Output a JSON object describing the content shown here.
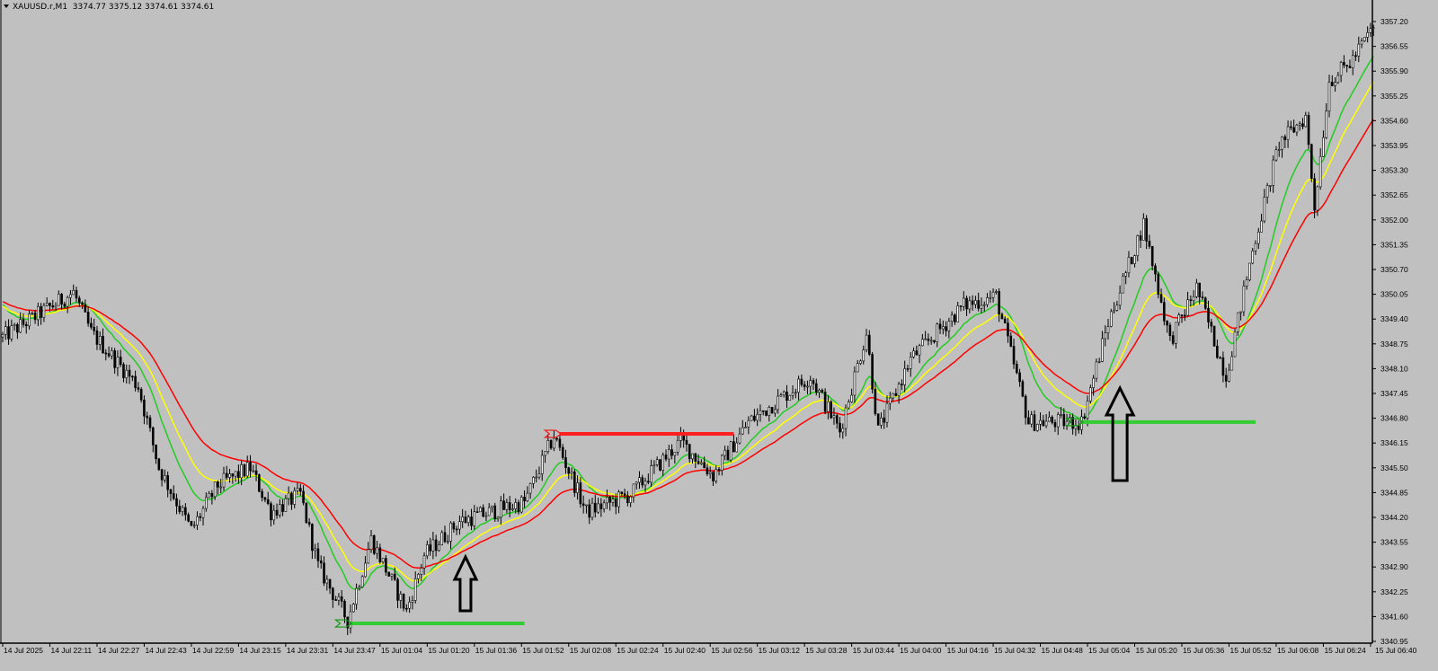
{
  "header": {
    "symbol": "XAUUSD.r,M1",
    "ohlc": "3374.77 3375.12 3374.61 3374.61"
  },
  "chart_data": {
    "type": "candlestick",
    "timeframe": "M1",
    "ylim": [
      3340.95,
      3357.2
    ],
    "y_ticks": [
      "3357.20",
      "3356.55",
      "3355.90",
      "3355.25",
      "3354.60",
      "3353.95",
      "3353.30",
      "3352.65",
      "3352.00",
      "3351.35",
      "3350.70",
      "3350.05",
      "3349.40",
      "3348.75",
      "3348.10",
      "3347.45",
      "3346.80",
      "3346.15",
      "3345.50",
      "3344.85",
      "3344.20",
      "3343.55",
      "3342.90",
      "3342.25",
      "3341.60",
      "3340.95"
    ],
    "x_ticks": [
      "14 Jul 2025",
      "14 Jul 22:11",
      "14 Jul 22:27",
      "14 Jul 22:43",
      "14 Jul 22:59",
      "14 Jul 23:15",
      "14 Jul 23:31",
      "14 Jul 23:47",
      "15 Jul 01:04",
      "15 Jul 01:20",
      "15 Jul 01:36",
      "15 Jul 01:52",
      "15 Jul 02:08",
      "15 Jul 02:24",
      "15 Jul 02:40",
      "15 Jul 02:56",
      "15 Jul 03:12",
      "15 Jul 03:28",
      "15 Jul 03:44",
      "15 Jul 04:00",
      "15 Jul 04:16",
      "15 Jul 04:32",
      "15 Jul 04:48",
      "15 Jul 05:04",
      "15 Jul 05:20",
      "15 Jul 05:36",
      "15 Jul 05:52",
      "15 Jul 06:08",
      "15 Jul 06:24",
      "15 Jul 06:40"
    ],
    "bars_per_tick": 16,
    "price_path": [
      [
        0,
        3348.93
      ],
      [
        24,
        3350.1
      ],
      [
        30,
        3349.05
      ],
      [
        46,
        3347.64
      ],
      [
        53,
        3345.5
      ],
      [
        64,
        3343.87
      ],
      [
        73,
        3345.05
      ],
      [
        84,
        3345.5
      ],
      [
        91,
        3344.34
      ],
      [
        101,
        3344.8
      ],
      [
        107,
        3342.93
      ],
      [
        117,
        3341.5
      ],
      [
        125,
        3343.63
      ],
      [
        137,
        3341.75
      ],
      [
        143,
        3343.2
      ],
      [
        155,
        3344.1
      ],
      [
        177,
        3344.6
      ],
      [
        187,
        3346.34
      ],
      [
        198,
        3344.34
      ],
      [
        213,
        3344.8
      ],
      [
        230,
        3346.2
      ],
      [
        241,
        3345.3
      ],
      [
        253,
        3346.7
      ],
      [
        274,
        3347.9
      ],
      [
        284,
        3346.46
      ],
      [
        293,
        3349.05
      ],
      [
        297,
        3346.46
      ],
      [
        308,
        3348.35
      ],
      [
        326,
        3349.76
      ],
      [
        337,
        3350.0
      ],
      [
        348,
        3346.7
      ],
      [
        366,
        3346.7
      ],
      [
        375,
        3349.3
      ],
      [
        387,
        3351.9
      ],
      [
        396,
        3348.83
      ],
      [
        405,
        3350.23
      ],
      [
        415,
        3347.9
      ],
      [
        424,
        3351.2
      ],
      [
        433,
        3354.0
      ],
      [
        442,
        3354.7
      ],
      [
        445,
        3352.35
      ],
      [
        450,
        3355.65
      ],
      [
        457,
        3356.1
      ],
      [
        465,
        3357.06
      ]
    ],
    "moving_averages": [
      {
        "color": "#22cc22",
        "period": 14,
        "start": 3349.9
      },
      {
        "color": "#ffff00",
        "period": 24,
        "start": 3349.8
      },
      {
        "color": "#ff0000",
        "period": 40,
        "start": 3349.9
      }
    ],
    "levels": [
      {
        "kind": "resistance",
        "price": 3346.39,
        "from_bar": 187,
        "to_bar": 248,
        "color": "#ff2020"
      },
      {
        "kind": "support",
        "price": 3341.42,
        "from_bar": 116,
        "to_bar": 177,
        "color": "#33cc33"
      },
      {
        "kind": "support",
        "price": 3346.7,
        "from_bar": 364,
        "to_bar": 425,
        "color": "#33cc33"
      }
    ],
    "arrows": [
      {
        "direction": "up",
        "bar": 157
      },
      {
        "direction": "up",
        "bar": 379
      }
    ],
    "colors": {
      "background": "#c0c0c0",
      "candle_up": "#ffffff",
      "candle_down": "#000000"
    }
  }
}
